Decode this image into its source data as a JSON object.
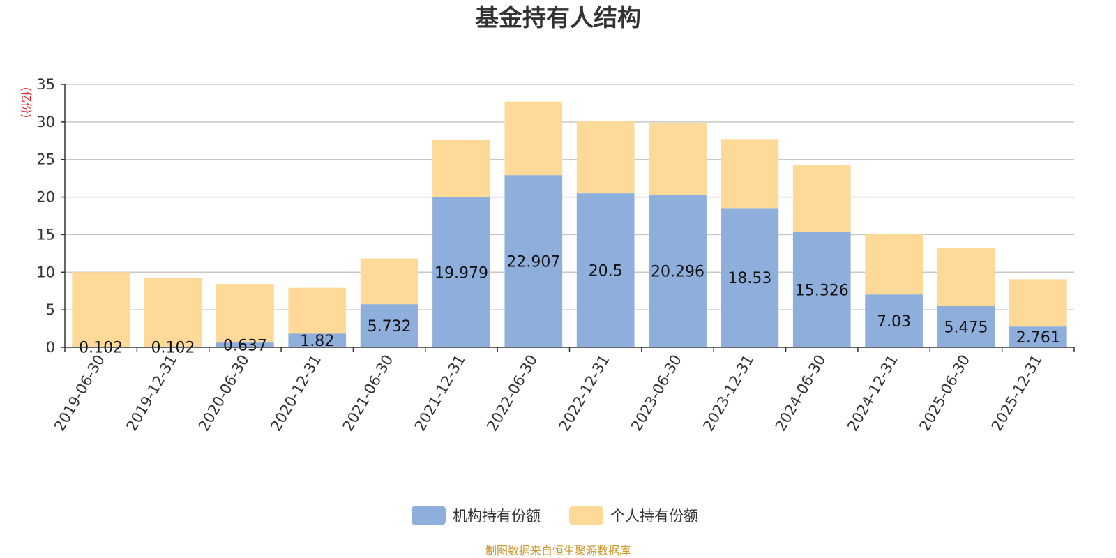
{
  "chart_data": {
    "type": "bar",
    "stacked": true,
    "title": "基金持有人结构",
    "ylabel": "(亿份)",
    "xlabel": "",
    "ylim": [
      0,
      35
    ],
    "yticks": [
      0,
      5,
      10,
      15,
      20,
      25,
      30,
      35
    ],
    "grid": true,
    "legend_position": "bottom-center",
    "categories": [
      "2019-06-30",
      "2019-12-31",
      "2020-06-30",
      "2020-12-31",
      "2021-06-30",
      "2021-12-31",
      "2022-06-30",
      "2022-12-31",
      "2023-06-30",
      "2023-12-31",
      "2024-06-30",
      "2024-12-31",
      "2025-06-30",
      "2025-12-31"
    ],
    "series": [
      {
        "name": "机构持有份额",
        "color": "#8eaedb",
        "values": [
          0.102,
          0.102,
          0.637,
          1.82,
          5.732,
          19.979,
          22.907,
          20.5,
          20.296,
          18.53,
          15.326,
          7.03,
          5.475,
          2.761
        ],
        "labels": [
          "0.102",
          "0.102",
          "0.637",
          "1.82",
          "5.732",
          "19.979",
          "22.907",
          "20.5",
          "20.296",
          "18.53",
          "15.326",
          "7.03",
          "5.475",
          "2.761"
        ]
      },
      {
        "name": "个人持有份额",
        "color": "#ffd997",
        "values": [
          9.9,
          9.1,
          7.8,
          6.1,
          6.1,
          7.7,
          9.8,
          9.6,
          9.5,
          9.2,
          8.9,
          8.1,
          7.7,
          6.3
        ]
      }
    ],
    "source": "制图数据来自恒生聚源数据库"
  }
}
